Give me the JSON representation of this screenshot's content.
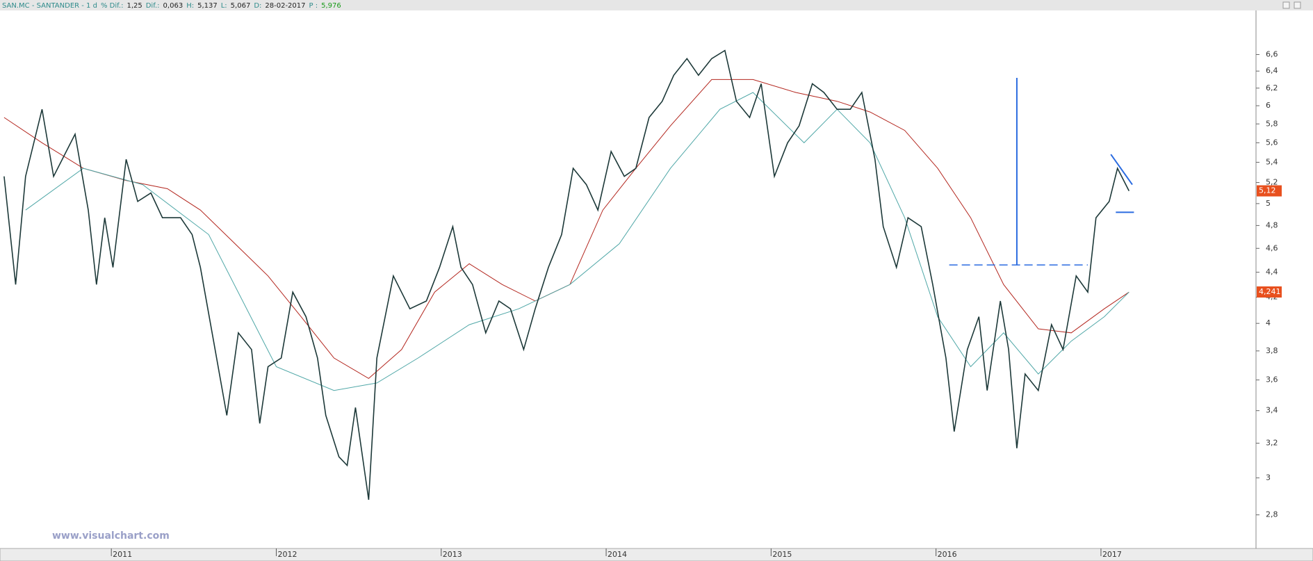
{
  "chart_data": {
    "type": "line",
    "header": [
      "SAN.MC - SANTANDER - 1 d",
      "% Dif.:",
      "1,25",
      "Dif.:",
      "0,063",
      "H:",
      "5,137",
      "L:",
      "5,067",
      "D:",
      "28-02-2017",
      "P :",
      "5,976"
    ],
    "watermark": "www.visualchart.com",
    "log_scale": true,
    "xlim": [
      2010.325,
      2017.94
    ],
    "xticks": [
      2011,
      2012,
      2013,
      2014,
      2015,
      2016,
      2017
    ],
    "ylim": [
      2.63,
      7.17
    ],
    "yticks": [
      {
        "value": 2.8,
        "label": "2,8"
      },
      3,
      {
        "value": 3.2,
        "label": "3,2"
      },
      {
        "value": 3.4,
        "label": "3,4"
      },
      {
        "value": 3.6,
        "label": "3,6"
      },
      {
        "value": 3.8,
        "label": "3,8"
      },
      4,
      {
        "value": 4.2,
        "label": "4,2"
      },
      {
        "value": 4.4,
        "label": "4,4"
      },
      {
        "value": 4.6,
        "label": "4,6"
      },
      {
        "value": 4.8,
        "label": "4,8"
      },
      5,
      {
        "value": 5.2,
        "label": "5,2"
      },
      {
        "value": 5.4,
        "label": "5,4"
      },
      {
        "value": 5.6,
        "label": "5,6"
      },
      {
        "value": 5.8,
        "label": "5,8"
      },
      6,
      {
        "value": 6.2,
        "label": "6,2"
      },
      {
        "value": 6.4,
        "label": "6,4"
      },
      {
        "value": 6.6,
        "label": "6,6"
      }
    ],
    "series": [
      {
        "color": "#1c3838",
        "x": [
          2010.35,
          2010.42,
          2010.48,
          2010.58,
          2010.65,
          2010.78,
          2010.86,
          2010.91,
          2010.96,
          2011.01,
          2011.09,
          2011.16,
          2011.24,
          2011.31,
          2011.42,
          2011.49,
          2011.54,
          2011.62,
          2011.7,
          2011.77,
          2011.85,
          2011.9,
          2011.95,
          2012.03,
          2012.1,
          2012.18,
          2012.25,
          2012.3,
          2012.38,
          2012.43,
          2012.48,
          2012.56,
          2012.61,
          2012.71,
          2012.81,
          2012.91,
          2012.99,
          2013.07,
          2013.12,
          2013.19,
          2013.27,
          2013.35,
          2013.42,
          2013.5,
          2013.57,
          2013.65,
          2013.73,
          2013.8,
          2013.88,
          2013.95,
          2014.03,
          2014.11,
          2014.18,
          2014.26,
          2014.34,
          2014.41,
          2014.49,
          2014.56,
          2014.64,
          2014.72,
          2014.79,
          2014.87,
          2014.94,
          2015.02,
          2015.1,
          2015.17,
          2015.25,
          2015.32,
          2015.4,
          2015.48,
          2015.55,
          2015.63,
          2015.68,
          2015.76,
          2015.83,
          2015.91,
          2015.98,
          2016.06,
          2016.11,
          2016.19,
          2016.26,
          2016.31,
          2016.39,
          2016.44,
          2016.49,
          2016.54,
          2016.62,
          2016.7,
          2016.77,
          2016.85,
          2016.92,
          2016.97,
          2017.05,
          2017.1,
          2017.17
        ],
        "values": [
          5.26,
          4.3,
          5.26,
          5.96,
          5.26,
          5.69,
          4.94,
          4.3,
          4.87,
          4.44,
          5.43,
          5.02,
          5.1,
          4.87,
          4.87,
          4.72,
          4.44,
          3.87,
          3.37,
          3.93,
          3.81,
          3.32,
          3.69,
          3.75,
          4.24,
          4.05,
          3.75,
          3.37,
          3.12,
          3.07,
          3.42,
          2.88,
          3.75,
          4.37,
          4.11,
          4.17,
          4.44,
          4.79,
          4.44,
          4.3,
          3.93,
          4.17,
          4.11,
          3.81,
          4.11,
          4.44,
          4.72,
          5.34,
          5.18,
          4.94,
          5.51,
          5.26,
          5.34,
          5.87,
          6.05,
          6.35,
          6.55,
          6.35,
          6.55,
          6.65,
          6.05,
          5.87,
          6.25,
          5.26,
          5.6,
          5.78,
          6.25,
          6.15,
          5.96,
          5.96,
          6.15,
          5.43,
          4.79,
          4.44,
          4.87,
          4.79,
          4.3,
          3.75,
          3.27,
          3.81,
          4.05,
          3.53,
          4.17,
          3.81,
          3.17,
          3.64,
          3.53,
          3.99,
          3.81,
          4.37,
          4.24,
          4.87,
          5.02,
          5.34,
          5.12
        ]
      },
      {
        "color": "#b3261e",
        "x": [
          2010.35,
          2010.58,
          2010.83,
          2011.09,
          2011.34,
          2011.54,
          2011.75,
          2011.95,
          2012.15,
          2012.35,
          2012.56,
          2012.76,
          2012.96,
          2013.17,
          2013.37,
          2013.57,
          2013.78,
          2013.98,
          2014.18,
          2014.39,
          2014.64,
          2014.89,
          2015.15,
          2015.4,
          2015.6,
          2015.81,
          2016.01,
          2016.21,
          2016.41,
          2016.62,
          2016.82,
          2017.02,
          2017.17
        ],
        "values": [
          5.87,
          5.6,
          5.34,
          5.22,
          5.14,
          4.94,
          4.64,
          4.37,
          4.05,
          3.75,
          3.61,
          3.81,
          4.24,
          4.47,
          4.3,
          4.17,
          4.3,
          4.94,
          5.34,
          5.78,
          6.3,
          6.3,
          6.15,
          6.05,
          5.93,
          5.73,
          5.34,
          4.87,
          4.3,
          3.96,
          3.93,
          4.11,
          4.24
        ]
      },
      {
        "color": "#4fa7a7",
        "x": [
          2010.48,
          2010.83,
          2011.19,
          2011.59,
          2012.0,
          2012.35,
          2012.61,
          2012.86,
          2013.17,
          2013.47,
          2013.78,
          2014.08,
          2014.39,
          2014.69,
          2014.89,
          2015.2,
          2015.4,
          2015.6,
          2015.81,
          2016.01,
          2016.21,
          2016.41,
          2016.62,
          2016.82,
          2017.02,
          2017.17
        ],
        "values": [
          4.94,
          5.34,
          5.18,
          4.72,
          3.69,
          3.53,
          3.58,
          3.75,
          3.99,
          4.11,
          4.3,
          4.64,
          5.34,
          5.96,
          6.15,
          5.6,
          5.96,
          5.6,
          4.87,
          4.05,
          3.69,
          3.93,
          3.64,
          3.87,
          4.05,
          4.24
        ]
      }
    ],
    "price_tags": [
      {
        "value": 5.12,
        "label": "5,12"
      },
      {
        "value": 4.241,
        "label": "4,241"
      }
    ],
    "price_tag_color": "#e8501e",
    "drawings": [
      {
        "x": [
          2016.49,
          2016.49
        ],
        "y": [
          4.46,
          6.32
        ],
        "dash": false
      },
      {
        "x": [
          2016.08,
          2016.92
        ],
        "y": [
          4.46,
          4.46
        ],
        "dash": true
      },
      {
        "x": [
          2017.06,
          2017.19
        ],
        "y": [
          5.48,
          5.18
        ],
        "dash": false
      },
      {
        "x": [
          2017.09,
          2017.2
        ],
        "y": [
          4.92,
          4.92
        ],
        "dash": false
      }
    ],
    "drawing_color": "#2a6be0"
  }
}
